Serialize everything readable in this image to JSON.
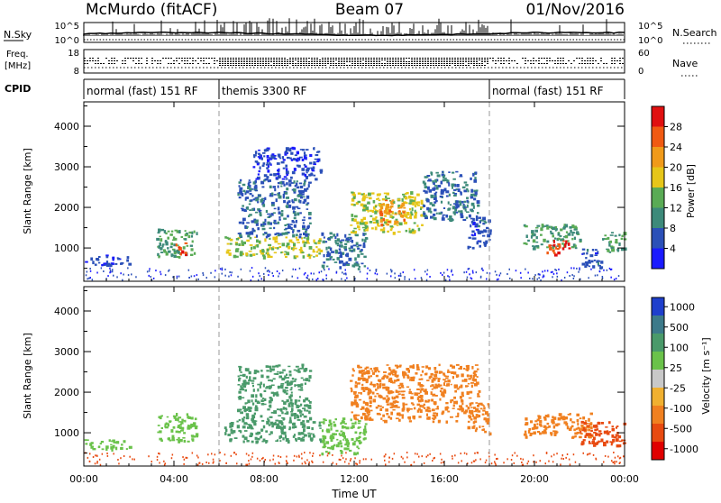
{
  "header": {
    "station": "McMurdo (fitACF)",
    "beam": "Beam 07",
    "date": "01/Nov/2016"
  },
  "noise_panel": {
    "left_label": "N.Sky",
    "right_label": "N.Search",
    "left_ticks": [
      "10^5",
      "10^0"
    ],
    "right_ticks": [
      "10^5",
      "10^0"
    ]
  },
  "freq_panel": {
    "left_label": "Freq.",
    "left_unit": "[MHz]",
    "right_label": "Nave",
    "left_ticks": [
      "18",
      "8"
    ],
    "right_ticks": [
      "60",
      "0"
    ]
  },
  "cpid_panel": {
    "label": "CPID",
    "segments": [
      {
        "label": "normal (fast) 151 RF",
        "start": 0,
        "end": 6
      },
      {
        "label": "themis 3300 RF",
        "start": 6,
        "end": 18
      },
      {
        "label": "normal (fast) 151 RF",
        "start": 18,
        "end": 24
      }
    ]
  },
  "x_axis": {
    "label": "Time UT",
    "ticks": [
      "00:00",
      "04:00",
      "08:00",
      "12:00",
      "16:00",
      "20:00",
      "00:00"
    ]
  },
  "power_panel": {
    "ylabel": "Slant Range [km]",
    "yticks": [
      "1000",
      "2000",
      "3000",
      "4000"
    ],
    "colorbar_label": "Power [dB]",
    "colorbar_ticks": [
      "4",
      "8",
      "12",
      "16",
      "20",
      "24",
      "28"
    ],
    "colors": [
      "#1a1aff",
      "#2b50b8",
      "#3d8a7a",
      "#5aab55",
      "#e6c619",
      "#f09a1a",
      "#f05a12",
      "#e01010"
    ]
  },
  "velocity_panel": {
    "ylabel": "Slant Range [km]",
    "yticks": [
      "1000",
      "2000",
      "3000",
      "4000"
    ],
    "colorbar_label": "Velocity [m s⁻¹]",
    "colorbar_ticks": [
      "1000",
      "500",
      "100",
      "25",
      "-25",
      "-100",
      "-500",
      "-1000"
    ],
    "colors": [
      "#1f3fcc",
      "#3d7a8a",
      "#4a9a6a",
      "#6ac24a",
      "#c8c8c8",
      "#f0b030",
      "#f08020",
      "#e84a10",
      "#e00000"
    ]
  },
  "chart_data": [
    {
      "type": "heatmap",
      "title": "Power",
      "xlabel": "Time UT",
      "ylabel": "Slant Range [km]",
      "xlim": [
        0,
        24
      ],
      "ylim": [
        180,
        4600
      ],
      "zlabel": "Power [dB]",
      "zlim": [
        0,
        32
      ],
      "mode_changes": [
        6,
        18
      ],
      "patches": [
        {
          "t0": 0.0,
          "t1": 2.0,
          "r0": 600,
          "r1": 850,
          "value": 5
        },
        {
          "t0": 3.2,
          "t1": 5.0,
          "r0": 800,
          "r1": 1500,
          "value": 12
        },
        {
          "t0": 4.0,
          "t1": 4.5,
          "r0": 850,
          "r1": 1200,
          "value": 26
        },
        {
          "t0": 6.2,
          "t1": 10.5,
          "r0": 800,
          "r1": 1300,
          "value": 16
        },
        {
          "t0": 6.8,
          "t1": 10.0,
          "r0": 1300,
          "r1": 2700,
          "value": 7
        },
        {
          "t0": 7.5,
          "t1": 10.5,
          "r0": 2700,
          "r1": 3500,
          "value": 5
        },
        {
          "t0": 10.5,
          "t1": 12.5,
          "r0": 500,
          "r1": 1400,
          "value": 8
        },
        {
          "t0": 11.8,
          "t1": 15.0,
          "r0": 1400,
          "r1": 2400,
          "value": 17
        },
        {
          "t0": 13.0,
          "t1": 14.2,
          "r0": 1600,
          "r1": 2200,
          "value": 23
        },
        {
          "t0": 15.0,
          "t1": 17.5,
          "r0": 1700,
          "r1": 2900,
          "value": 8
        },
        {
          "t0": 17.0,
          "t1": 18.0,
          "r0": 1000,
          "r1": 1800,
          "value": 6
        },
        {
          "t0": 19.5,
          "t1": 22.0,
          "r0": 1000,
          "r1": 1600,
          "value": 12
        },
        {
          "t0": 20.5,
          "t1": 21.5,
          "r0": 850,
          "r1": 1200,
          "value": 27
        },
        {
          "t0": 22.0,
          "t1": 23.0,
          "r0": 500,
          "r1": 1000,
          "value": 6
        },
        {
          "t0": 23.0,
          "t1": 24.0,
          "r0": 900,
          "r1": 1400,
          "value": 12
        }
      ]
    },
    {
      "type": "heatmap",
      "title": "Velocity",
      "xlabel": "Time UT",
      "ylabel": "Slant Range [km]",
      "xlim": [
        0,
        24
      ],
      "ylim": [
        180,
        4600
      ],
      "zlabel": "Velocity [m s-1]",
      "zlim": [
        -1000,
        1000
      ],
      "mode_changes": [
        6,
        18
      ],
      "patches": [
        {
          "t0": 0.0,
          "t1": 2.0,
          "r0": 600,
          "r1": 850,
          "value": 50
        },
        {
          "t0": 3.2,
          "t1": 5.0,
          "r0": 800,
          "r1": 1500,
          "value": 80
        },
        {
          "t0": 6.2,
          "t1": 10.5,
          "r0": 800,
          "r1": 1300,
          "value": 200
        },
        {
          "t0": 6.8,
          "t1": 10.0,
          "r0": 1300,
          "r1": 2700,
          "value": 150
        },
        {
          "t0": 10.5,
          "t1": 12.5,
          "r0": 500,
          "r1": 1400,
          "value": 30
        },
        {
          "t0": 11.8,
          "t1": 17.5,
          "r0": 1300,
          "r1": 2700,
          "value": -300
        },
        {
          "t0": 17.0,
          "t1": 18.0,
          "r0": 1000,
          "r1": 1800,
          "value": -150
        },
        {
          "t0": 19.5,
          "t1": 22.5,
          "r0": 900,
          "r1": 1500,
          "value": -350
        },
        {
          "t0": 22.0,
          "t1": 24.0,
          "r0": 700,
          "r1": 1300,
          "value": -600
        }
      ]
    }
  ]
}
